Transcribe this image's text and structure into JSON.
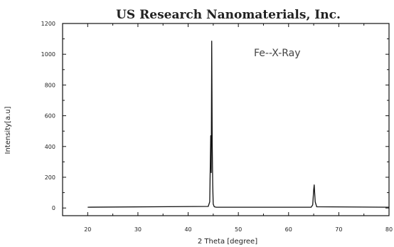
{
  "chart_data": {
    "type": "line",
    "title": "US Research Nanomaterials, Inc.",
    "annotation": "Fe--X-Ray",
    "xlabel": "2 Theta [degree]",
    "ylabel": "Intensity[a.u]",
    "xlim": [
      15,
      80
    ],
    "ylim": [
      -50,
      1200
    ],
    "xticks": [
      20,
      30,
      40,
      50,
      60,
      70,
      80
    ],
    "yticks": [
      0,
      200,
      400,
      600,
      800,
      1000,
      1200
    ],
    "grid": false,
    "series": [
      {
        "color": "#111111",
        "x": [
          20,
          44.0,
          44.3,
          44.5,
          44.6,
          44.7,
          44.8,
          44.9,
          45.0,
          45.2,
          45.6,
          64.5,
          64.8,
          65.0,
          65.1,
          65.3,
          65.6,
          80
        ],
        "y": [
          5,
          10,
          40,
          470,
          230,
          1085,
          420,
          150,
          25,
          8,
          5,
          5,
          20,
          120,
          150,
          40,
          8,
          5
        ]
      }
    ]
  }
}
